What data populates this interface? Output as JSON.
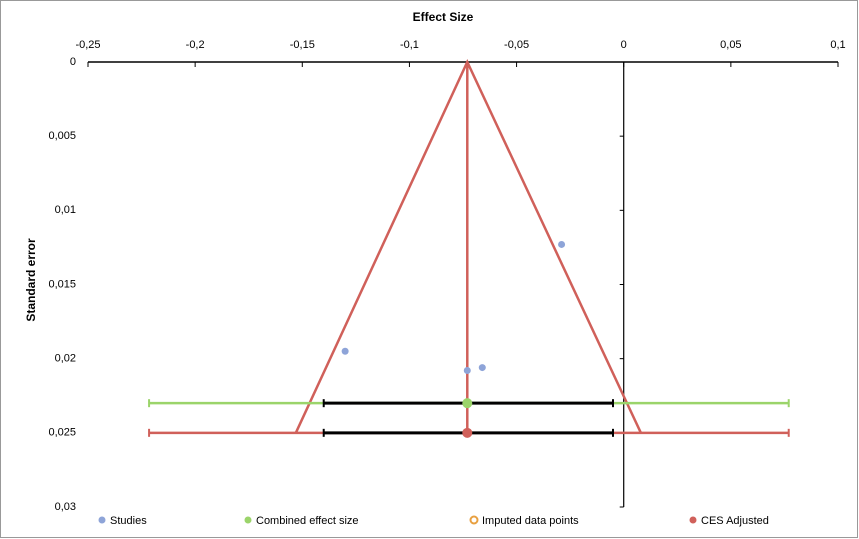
{
  "chart_data": {
    "type": "funnel-scatter",
    "x_label": "Effect Size",
    "y_label": "Standard error",
    "xlim": [
      -0.25,
      0.1
    ],
    "ylim": [
      0,
      0.03
    ],
    "y_reversed": true,
    "xticks": [
      {
        "value": -0.25,
        "label": "-0,25"
      },
      {
        "value": -0.2,
        "label": "-0,2"
      },
      {
        "value": -0.15,
        "label": "-0,15"
      },
      {
        "value": -0.1,
        "label": "-0,1"
      },
      {
        "value": -0.05,
        "label": "-0,05"
      },
      0,
      {
        "value": 0.05,
        "label": "0,05"
      },
      {
        "value": 0.1,
        "label": "0,1"
      }
    ],
    "yticks": [
      0,
      {
        "value": 0.005,
        "label": "0,005"
      },
      {
        "value": 0.01,
        "label": "0,01"
      },
      {
        "value": 0.015,
        "label": "0,015"
      },
      {
        "value": 0.02,
        "label": "0,02"
      },
      {
        "value": 0.025,
        "label": "0,025"
      },
      {
        "value": 0.03,
        "label": "0,03"
      }
    ],
    "funnel": {
      "color": "#d0605a",
      "x": [
        -0.153,
        -0.073,
        0.008
      ],
      "y": [
        0.025,
        0,
        0.025
      ]
    },
    "series": [
      {
        "name": "Studies",
        "color": "#8ea4d8",
        "x": [
          -0.029,
          -0.13,
          -0.073,
          -0.066
        ],
        "y": [
          0.0123,
          0.0195,
          0.0208,
          0.0206
        ]
      },
      {
        "name": "Combined effect size",
        "color": "#9bd46a",
        "x": [
          -0.073
        ],
        "y": [
          0.023
        ],
        "range": [
          -0.2215,
          0.077
        ],
        "ci": [
          -0.14,
          -0.005
        ]
      },
      {
        "name": "Imputed data points",
        "color": "#e8a040",
        "hollow": true,
        "x": [],
        "y": []
      },
      {
        "name": "CES Adjusted",
        "color": "#d0605a",
        "x": [
          -0.073
        ],
        "y": [
          0.025
        ],
        "range": [
          -0.2215,
          0.077
        ],
        "ci": [
          -0.14,
          -0.005
        ]
      }
    ]
  }
}
